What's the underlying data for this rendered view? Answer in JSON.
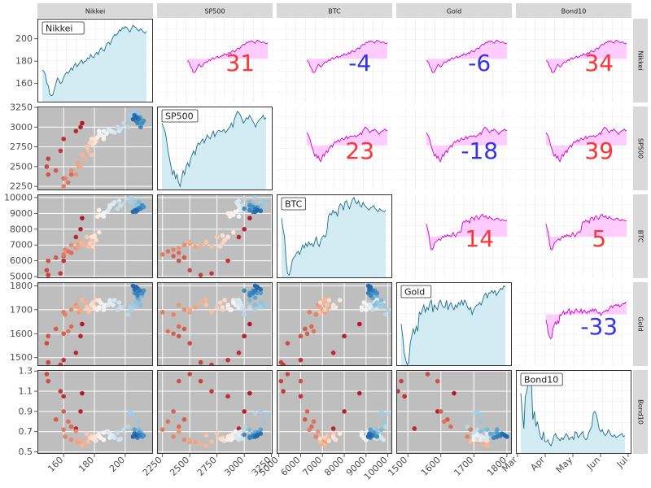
{
  "chart_data": {
    "type": "pairs-matrix",
    "variables": [
      "Nikkei",
      "SP500",
      "BTC",
      "Gold",
      "Bond10"
    ],
    "axes": {
      "Nikkei": {
        "range": [
          143,
          218
        ],
        "ticks": [
          160,
          180,
          200
        ],
        "row_ticks": [
          160,
          180,
          200
        ]
      },
      "SP500": {
        "range": [
          2200,
          3260
        ],
        "ticks": [
          2250,
          2500,
          2750,
          3000,
          3250
        ],
        "row_ticks": [
          2250,
          2500,
          2750,
          3000,
          3250
        ]
      },
      "BTC": {
        "range": [
          4900,
          10200
        ],
        "ticks": [
          5000,
          6000,
          7000,
          8000,
          9000,
          10000
        ],
        "row_ticks": [
          5000,
          6000,
          7000,
          8000,
          9000,
          10000
        ]
      },
      "Gold": {
        "range": [
          1465,
          1815
        ],
        "ticks": [
          1500,
          1600,
          1700,
          1800
        ],
        "row_ticks": [
          1500,
          1600,
          1700,
          1800
        ]
      },
      "Bond10": {
        "range": [
          0.48,
          1.31
        ],
        "ticks": [
          0.5,
          0.7,
          0.9,
          1.1,
          1.3
        ],
        "row_ticks": [
          "0.5",
          "0.7",
          "0.9",
          "1.1",
          "1.3"
        ]
      }
    },
    "date_axis": {
      "ticks": [
        "Mar",
        "Apr",
        "May",
        "Jun",
        "Jul"
      ]
    },
    "correlations": [
      {
        "row": "Nikkei",
        "col": "SP500",
        "value": 31
      },
      {
        "row": "Nikkei",
        "col": "BTC",
        "value": -4
      },
      {
        "row": "Nikkei",
        "col": "Gold",
        "value": -6
      },
      {
        "row": "Nikkei",
        "col": "Bond10",
        "value": 34
      },
      {
        "row": "SP500",
        "col": "BTC",
        "value": 23
      },
      {
        "row": "SP500",
        "col": "Gold",
        "value": -18
      },
      {
        "row": "SP500",
        "col": "Bond10",
        "value": 39
      },
      {
        "row": "BTC",
        "col": "Gold",
        "value": 14
      },
      {
        "row": "BTC",
        "col": "Bond10",
        "value": 5
      },
      {
        "row": "Gold",
        "col": "Bond10",
        "value": -33
      }
    ],
    "series": [
      {
        "name": "Nikkei",
        "values": [
          172,
          171,
          168,
          160,
          158,
          150,
          149,
          150,
          155,
          160,
          165,
          163,
          160,
          161,
          165,
          168,
          170,
          169,
          171,
          174,
          172,
          176,
          178,
          175,
          177,
          179,
          181,
          178,
          180,
          180,
          183,
          182,
          186,
          184,
          183,
          186,
          188,
          186,
          190,
          192,
          190,
          189,
          193,
          196,
          197,
          195,
          199,
          202,
          204,
          203,
          205,
          208,
          207,
          210,
          209,
          211,
          210,
          208,
          206,
          209,
          212,
          211,
          210,
          208,
          207,
          209,
          208,
          206,
          205,
          207
        ]
      },
      {
        "name": "SP500",
        "values": [
          3050,
          3000,
          2950,
          2850,
          2700,
          2600,
          2500,
          2400,
          2450,
          2350,
          2400,
          2300,
          2250,
          2350,
          2450,
          2400,
          2500,
          2550,
          2500,
          2600,
          2650,
          2700,
          2650,
          2750,
          2800,
          2780,
          2820,
          2850,
          2800,
          2850,
          2900,
          2870,
          2850,
          2900,
          2950,
          2880,
          2920,
          2950,
          2960,
          2940,
          2950,
          2970,
          2930,
          2950,
          2980,
          3000,
          3050,
          3000,
          3100,
          3150,
          3200,
          3180,
          3150,
          3100,
          3050,
          3080,
          3120,
          3100,
          3150,
          3120,
          3080,
          3050,
          3000,
          3050,
          3080,
          3100,
          3120,
          3150,
          3100,
          3120
        ]
      },
      {
        "name": "BTC",
        "values": [
          8700,
          8000,
          7500,
          6000,
          5200,
          5100,
          5400,
          6000,
          6200,
          6300,
          6500,
          6600,
          6400,
          6700,
          7000,
          6800,
          7100,
          6900,
          7200,
          7000,
          7100,
          6900,
          7200,
          7500,
          7100,
          6900,
          7300,
          7500,
          7600,
          7500,
          7800,
          8800,
          9000,
          8900,
          9200,
          9000,
          9100,
          8800,
          9400,
          9600,
          9500,
          9200,
          9700,
          9800,
          9500,
          9300,
          9600,
          9900,
          10000,
          9700,
          9600,
          9800,
          9500,
          9400,
          9700,
          9500,
          9400,
          9300,
          9200,
          9350,
          9400,
          9500,
          9300,
          9200,
          9100,
          9300,
          9200,
          9150,
          9100,
          9200
        ]
      },
      {
        "name": "Gold",
        "values": [
          1640,
          1590,
          1520,
          1490,
          1470,
          1480,
          1560,
          1590,
          1620,
          1600,
          1630,
          1610,
          1690,
          1680,
          1700,
          1720,
          1690,
          1710,
          1700,
          1730,
          1740,
          1690,
          1720,
          1710,
          1700,
          1730,
          1740,
          1720,
          1710,
          1710,
          1740,
          1700,
          1720,
          1730,
          1710,
          1700,
          1720,
          1710,
          1730,
          1720,
          1740,
          1720,
          1740,
          1730,
          1710,
          1700,
          1710,
          1680,
          1700,
          1710,
          1720,
          1720,
          1730,
          1720,
          1740,
          1760,
          1770,
          1750,
          1770,
          1770,
          1780,
          1770,
          1780,
          1760,
          1770,
          1780,
          1790,
          1785,
          1800,
          1795
        ]
      },
      {
        "name": "Bond10",
        "values": [
          1.08,
          0.9,
          0.73,
          1.05,
          1.1,
          1.2,
          1.27,
          1.2,
          0.82,
          0.9,
          0.75,
          0.8,
          0.72,
          0.65,
          0.62,
          0.7,
          0.6,
          0.6,
          0.62,
          0.58,
          0.56,
          0.6,
          0.66,
          0.68,
          0.64,
          0.63,
          0.61,
          0.64,
          0.62,
          0.65,
          0.68,
          0.66,
          0.62,
          0.64,
          0.65,
          0.62,
          0.7,
          0.69,
          0.64,
          0.66,
          0.68,
          0.7,
          0.64,
          0.62,
          0.63,
          0.69,
          0.72,
          0.75,
          0.88,
          0.9,
          0.87,
          0.8,
          0.72,
          0.7,
          0.72,
          0.68,
          0.66,
          0.68,
          0.72,
          0.69,
          0.66,
          0.65,
          0.67,
          0.64,
          0.65,
          0.66,
          0.67,
          0.68,
          0.65,
          0.66
        ]
      }
    ],
    "legend": "none",
    "grid": true
  },
  "colors": {
    "strip_bg": "#d9d9d9",
    "scatter_panel_bg": "#bebebe",
    "line_fill": "#d3ecf4",
    "line_stroke": "#1a6e87",
    "mini_line": "#cc00cc",
    "mini_fill": "#ffccff",
    "positive_corr": "#ff3333",
    "negative_corr": "#3333ee",
    "point_gradient": [
      "#b2182b",
      "#d6604d",
      "#f4a582",
      "#fddbc7",
      "#f7f7f7",
      "#d1e5f0",
      "#92c5de",
      "#4393c3",
      "#2166ac"
    ]
  }
}
